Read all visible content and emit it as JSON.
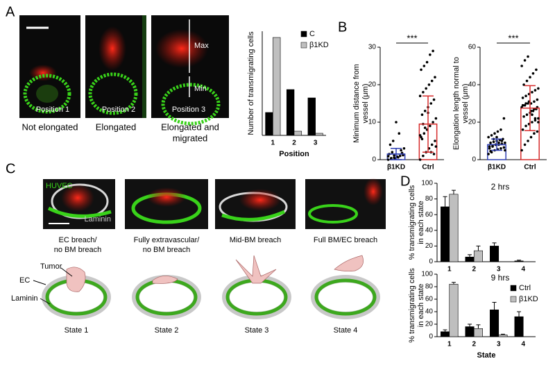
{
  "panel_labels": [
    "A",
    "B",
    "C",
    "D"
  ],
  "panel_a": {
    "image_labels": [
      "Position 1",
      "Position 2",
      "Position 3"
    ],
    "captions": [
      "Not elongated",
      "Elongated",
      [
        "Elongated and",
        "migrated"
      ]
    ],
    "max": "Max",
    "min": "Min"
  },
  "panel_c": {
    "image_labels": [
      "HUVEC",
      "Laminin"
    ],
    "captions": [
      [
        "EC breach/",
        "no BM breach"
      ],
      [
        "Fully extravascular/",
        "no BM breach"
      ],
      "Mid-BM breach",
      "Full BM/EC breach"
    ],
    "diagram_labels": [
      "Tumor",
      "EC",
      "Laminin"
    ],
    "states": [
      "State 1",
      "State 2",
      "State 3",
      "State 4"
    ]
  },
  "chart_data": [
    {
      "type": "bar",
      "y_label": [
        "Number of transmigrating cells"
      ],
      "x_label": "Position",
      "categories": [
        "1",
        "2",
        "3"
      ],
      "series": [
        {
          "name": "C",
          "color": "#000000",
          "values": [
            11,
            22,
            18
          ]
        },
        {
          "name": "β1KD",
          "color": "#bfbfbf",
          "values": [
            47,
            2,
            1
          ]
        }
      ],
      "ylim": [
        0,
        50
      ],
      "legend": "upper right"
    },
    {
      "type": "dot",
      "y_label": [
        "Minimum distance from",
        "vessel (μm)"
      ],
      "categories": [
        "β1KD",
        "Ctrl"
      ],
      "colors": [
        "#2f3fb3",
        "#d62b2b"
      ],
      "values": [
        1.5,
        9.5
      ],
      "errors": [
        1.5,
        7.5
      ],
      "points": [
        [
          0,
          0.2,
          0.5,
          0.8,
          1,
          1.2,
          1.5,
          2,
          0.3,
          0.6,
          2.5,
          3,
          4,
          5,
          10,
          7,
          1.8,
          0.9,
          0.4,
          1.1
        ],
        [
          0,
          1,
          2,
          3,
          4,
          5,
          6,
          7,
          8,
          9,
          10,
          11,
          12,
          13,
          14,
          15,
          16,
          17,
          18,
          19,
          20,
          21,
          22,
          24,
          25,
          26,
          28,
          29,
          3.5,
          5.5,
          8.5,
          12.5,
          2,
          1.5,
          6.5,
          9.5
        ]
      ],
      "ylim": [
        0,
        30
      ],
      "yticks": [
        0,
        10,
        20,
        30
      ],
      "significance": "***"
    },
    {
      "type": "dot",
      "y_label": [
        "Elongation length normal to",
        "vessel (μm)"
      ],
      "categories": [
        "β1KD",
        "Ctrl"
      ],
      "colors": [
        "#2f3fb3",
        "#d62b2b"
      ],
      "values": [
        8,
        27.5
      ],
      "errors": [
        3,
        12
      ],
      "points": [
        [
          3,
          4,
          5,
          5.5,
          6,
          6.5,
          7,
          7.5,
          8,
          8,
          8.5,
          9,
          9,
          9.5,
          10,
          10.5,
          11,
          12,
          13,
          14,
          15,
          16,
          22,
          6,
          7,
          8,
          9,
          10,
          5,
          4.5,
          11,
          12
        ],
        [
          5,
          8,
          10,
          12,
          14,
          15,
          16,
          18,
          19,
          20,
          21,
          22,
          23,
          24,
          25,
          26,
          27,
          28,
          29,
          30,
          30,
          31,
          32,
          33,
          34,
          35,
          36,
          37,
          38,
          40,
          42,
          44,
          46,
          48,
          50,
          53,
          55,
          26,
          27,
          28,
          29,
          30,
          31,
          24,
          22,
          20
        ]
      ],
      "ylim": [
        0,
        60
      ],
      "yticks": [
        0,
        20,
        40,
        60
      ],
      "significance": "***"
    },
    {
      "type": "bar",
      "title": "2 hrs",
      "y_label": [
        "% transmigrating cells",
        "in each state"
      ],
      "categories": [
        "1",
        "2",
        "3",
        "4"
      ],
      "series": [
        {
          "name": "Ctrl",
          "color": "#000000",
          "values": [
            70,
            6,
            20,
            1
          ],
          "errors": [
            13,
            3,
            4,
            1
          ]
        },
        {
          "name": "β1KD",
          "color": "#bfbfbf",
          "values": [
            86,
            14,
            0,
            0
          ],
          "errors": [
            5,
            6,
            0,
            0
          ]
        }
      ],
      "ylim": [
        0,
        100
      ],
      "yticks": [
        0,
        20,
        40,
        60,
        80,
        100
      ]
    },
    {
      "type": "bar",
      "title": "9 hrs",
      "y_label": [
        "% transmigrating cells",
        "in each state"
      ],
      "x_label": "State",
      "categories": [
        "1",
        "2",
        "3",
        "4"
      ],
      "series": [
        {
          "name": "Ctrl",
          "color": "#000000",
          "values": [
            8,
            16,
            43,
            32
          ],
          "errors": [
            3,
            4,
            12,
            8
          ]
        },
        {
          "name": "β1KD",
          "color": "#bfbfbf",
          "values": [
            84,
            13,
            3,
            0
          ],
          "errors": [
            3,
            6,
            1,
            0
          ]
        }
      ],
      "ylim": [
        0,
        100
      ],
      "yticks": [
        0,
        20,
        40,
        60,
        80,
        100
      ],
      "legend": "upper right"
    }
  ]
}
